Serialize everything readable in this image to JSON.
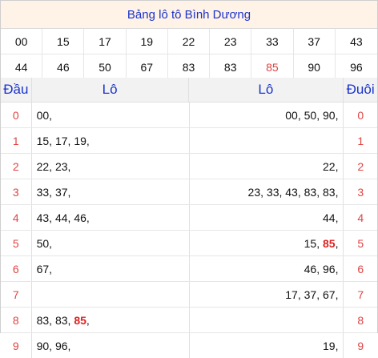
{
  "title": "Bảng lô tô Bình Dương",
  "numbers_row1": [
    "00",
    "15",
    "17",
    "19",
    "22",
    "23",
    "33",
    "37",
    "43"
  ],
  "numbers_row2": [
    "44",
    "46",
    "50",
    "67",
    "83",
    "83",
    "85",
    "90",
    "96"
  ],
  "highlight_numbers": [
    "85"
  ],
  "headers": {
    "dau": "Đầu",
    "lo_left": "Lô",
    "lo_right": "Lô",
    "duoi": "Đuôi"
  },
  "rows": [
    {
      "dau": "0",
      "left": [
        "00"
      ],
      "right": [
        "00",
        "50",
        "90"
      ],
      "duoi": "0"
    },
    {
      "dau": "1",
      "left": [
        "15",
        "17",
        "19"
      ],
      "right": [],
      "duoi": "1"
    },
    {
      "dau": "2",
      "left": [
        "22",
        "23"
      ],
      "right": [
        "22"
      ],
      "duoi": "2"
    },
    {
      "dau": "3",
      "left": [
        "33",
        "37"
      ],
      "right": [
        "23",
        "33",
        "43",
        "83",
        "83"
      ],
      "duoi": "3"
    },
    {
      "dau": "4",
      "left": [
        "43",
        "44",
        "46"
      ],
      "right": [
        "44"
      ],
      "duoi": "4"
    },
    {
      "dau": "5",
      "left": [
        "50"
      ],
      "right": [
        "15",
        "85"
      ],
      "duoi": "5"
    },
    {
      "dau": "6",
      "left": [
        "67"
      ],
      "right": [
        "46",
        "96"
      ],
      "duoi": "6"
    },
    {
      "dau": "7",
      "left": [],
      "right": [
        "17",
        "37",
        "67"
      ],
      "duoi": "7"
    },
    {
      "dau": "8",
      "left": [
        "83",
        "83",
        "85"
      ],
      "right": [],
      "duoi": "8"
    },
    {
      "dau": "9",
      "left": [
        "90",
        "96"
      ],
      "right": [
        "19"
      ],
      "duoi": "9"
    }
  ],
  "colors": {
    "title": "#1a33cc",
    "accent_red": "#e04444",
    "title_bg": "#fff2e6"
  }
}
